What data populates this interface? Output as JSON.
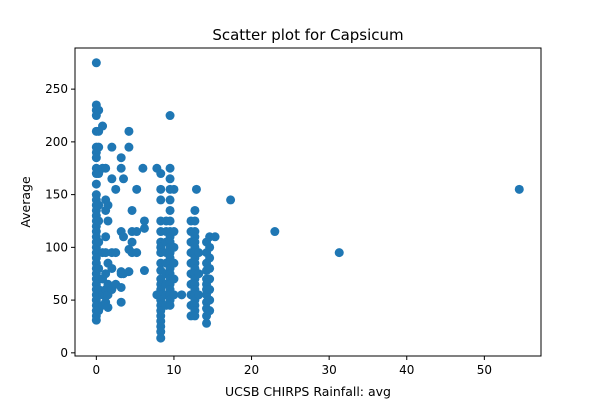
{
  "chart_data": {
    "type": "scatter",
    "title": "Scatter plot for Capsicum",
    "xlabel": "UCSB CHIRPS Rainfall: avg",
    "ylabel": "Average",
    "xlim": [
      -2.75,
      57.3
    ],
    "ylim": [
      -3,
      289
    ],
    "xticks": [
      0,
      10,
      20,
      30,
      40,
      50
    ],
    "yticks": [
      0,
      50,
      100,
      150,
      200,
      250
    ],
    "grid": false,
    "marker_color": "#1f77b4",
    "points": [
      [
        0,
        275
      ],
      [
        0,
        235
      ],
      [
        0,
        230
      ],
      [
        0,
        225
      ],
      [
        0,
        210
      ],
      [
        0,
        195
      ],
      [
        0,
        190
      ],
      [
        0,
        185
      ],
      [
        0,
        175
      ],
      [
        0,
        170
      ],
      [
        0,
        160
      ],
      [
        0,
        150
      ],
      [
        0,
        145
      ],
      [
        0,
        140
      ],
      [
        0,
        135
      ],
      [
        0,
        130
      ],
      [
        0,
        125
      ],
      [
        0,
        120
      ],
      [
        0,
        115
      ],
      [
        0,
        110
      ],
      [
        0,
        105
      ],
      [
        0,
        100
      ],
      [
        0,
        95
      ],
      [
        0,
        90
      ],
      [
        0,
        85
      ],
      [
        0,
        80
      ],
      [
        0,
        75
      ],
      [
        0,
        70
      ],
      [
        0,
        65
      ],
      [
        0,
        60
      ],
      [
        0,
        55
      ],
      [
        0,
        50
      ],
      [
        0,
        45
      ],
      [
        0,
        40
      ],
      [
        0,
        35
      ],
      [
        0,
        31
      ],
      [
        0.3,
        230
      ],
      [
        0.3,
        210
      ],
      [
        0.3,
        195
      ],
      [
        0.3,
        170
      ],
      [
        0.3,
        140
      ],
      [
        0.3,
        125
      ],
      [
        0.3,
        105
      ],
      [
        0.3,
        80
      ],
      [
        0.3,
        60
      ],
      [
        0.3,
        40
      ],
      [
        0.8,
        215
      ],
      [
        0.8,
        175
      ],
      [
        0.8,
        95
      ],
      [
        0.8,
        70
      ],
      [
        0.8,
        55
      ],
      [
        0.8,
        45
      ],
      [
        1.2,
        175
      ],
      [
        1.2,
        145
      ],
      [
        1.2,
        135
      ],
      [
        1.2,
        110
      ],
      [
        1.2,
        95
      ],
      [
        1.2,
        75
      ],
      [
        1.2,
        60
      ],
      [
        1.2,
        48
      ],
      [
        1.5,
        140
      ],
      [
        1.5,
        125
      ],
      [
        1.5,
        85
      ],
      [
        1.5,
        65
      ],
      [
        1.5,
        55
      ],
      [
        1.5,
        43
      ],
      [
        2.0,
        195
      ],
      [
        2.0,
        165
      ],
      [
        2.0,
        95
      ],
      [
        2.0,
        80
      ],
      [
        2.0,
        60
      ],
      [
        2.5,
        155
      ],
      [
        2.5,
        95
      ],
      [
        2.5,
        65
      ],
      [
        3.2,
        185
      ],
      [
        3.2,
        175
      ],
      [
        3.2,
        115
      ],
      [
        3.2,
        77
      ],
      [
        3.2,
        75
      ],
      [
        3.2,
        62
      ],
      [
        3.2,
        48
      ],
      [
        3.5,
        165
      ],
      [
        3.5,
        110
      ],
      [
        3.5,
        75
      ],
      [
        4.2,
        210
      ],
      [
        4.2,
        195
      ],
      [
        4.2,
        98
      ],
      [
        4.2,
        77
      ],
      [
        4.6,
        135
      ],
      [
        4.6,
        115
      ],
      [
        4.6,
        105
      ],
      [
        4.6,
        95
      ],
      [
        5.2,
        155
      ],
      [
        5.2,
        115
      ],
      [
        5.2,
        95
      ],
      [
        6.0,
        175
      ],
      [
        6.2,
        125
      ],
      [
        6.2,
        118
      ],
      [
        6.2,
        78
      ],
      [
        7.8,
        175
      ],
      [
        7.8,
        55
      ],
      [
        8.3,
        170
      ],
      [
        8.3,
        155
      ],
      [
        8.3,
        145
      ],
      [
        8.3,
        125
      ],
      [
        8.3,
        115
      ],
      [
        8.3,
        105
      ],
      [
        8.3,
        100
      ],
      [
        8.3,
        95
      ],
      [
        8.3,
        85
      ],
      [
        8.3,
        78
      ],
      [
        8.3,
        70
      ],
      [
        8.3,
        65
      ],
      [
        8.3,
        60
      ],
      [
        8.3,
        55
      ],
      [
        8.3,
        50
      ],
      [
        8.3,
        45
      ],
      [
        8.3,
        40
      ],
      [
        8.3,
        35
      ],
      [
        8.3,
        30
      ],
      [
        8.3,
        25
      ],
      [
        8.3,
        20
      ],
      [
        8.3,
        14
      ],
      [
        9.0,
        125
      ],
      [
        9.0,
        115
      ],
      [
        9.0,
        105
      ],
      [
        9.0,
        95
      ],
      [
        9.0,
        85
      ],
      [
        9.0,
        75
      ],
      [
        9.0,
        65
      ],
      [
        9.0,
        55
      ],
      [
        9.0,
        45
      ],
      [
        9.5,
        225
      ],
      [
        9.5,
        175
      ],
      [
        9.5,
        165
      ],
      [
        9.5,
        155
      ],
      [
        9.5,
        145
      ],
      [
        9.5,
        135
      ],
      [
        9.5,
        125
      ],
      [
        9.5,
        115
      ],
      [
        9.5,
        110
      ],
      [
        9.5,
        105
      ],
      [
        9.5,
        100
      ],
      [
        9.5,
        95
      ],
      [
        9.5,
        90
      ],
      [
        9.5,
        85
      ],
      [
        9.5,
        80
      ],
      [
        9.5,
        75
      ],
      [
        9.5,
        70
      ],
      [
        9.5,
        65
      ],
      [
        9.5,
        60
      ],
      [
        9.5,
        55
      ],
      [
        9.5,
        50
      ],
      [
        9.5,
        45
      ],
      [
        10.0,
        155
      ],
      [
        10.0,
        115
      ],
      [
        10.0,
        100
      ],
      [
        10.0,
        85
      ],
      [
        10.0,
        70
      ],
      [
        10.0,
        55
      ],
      [
        11.0,
        55
      ],
      [
        12.2,
        125
      ],
      [
        12.2,
        115
      ],
      [
        12.2,
        105
      ],
      [
        12.2,
        95
      ],
      [
        12.2,
        85
      ],
      [
        12.2,
        75
      ],
      [
        12.2,
        65
      ],
      [
        12.2,
        55
      ],
      [
        12.2,
        45
      ],
      [
        12.2,
        35
      ],
      [
        12.7,
        135
      ],
      [
        12.7,
        125
      ],
      [
        12.7,
        115
      ],
      [
        12.7,
        110
      ],
      [
        12.7,
        105
      ],
      [
        12.7,
        100
      ],
      [
        12.7,
        95
      ],
      [
        12.7,
        90
      ],
      [
        12.7,
        85
      ],
      [
        12.7,
        80
      ],
      [
        12.7,
        75
      ],
      [
        12.7,
        70
      ],
      [
        12.7,
        65
      ],
      [
        12.7,
        60
      ],
      [
        12.7,
        55
      ],
      [
        12.7,
        50
      ],
      [
        12.7,
        45
      ],
      [
        12.7,
        40
      ],
      [
        12.7,
        35
      ],
      [
        12.9,
        155
      ],
      [
        13.2,
        95
      ],
      [
        13.2,
        75
      ],
      [
        13.2,
        55
      ],
      [
        14.2,
        105
      ],
      [
        14.2,
        95
      ],
      [
        14.2,
        85
      ],
      [
        14.2,
        78
      ],
      [
        14.2,
        70
      ],
      [
        14.2,
        65
      ],
      [
        14.2,
        60
      ],
      [
        14.2,
        55
      ],
      [
        14.2,
        48
      ],
      [
        14.2,
        42
      ],
      [
        14.2,
        35
      ],
      [
        14.2,
        28
      ],
      [
        14.6,
        110
      ],
      [
        14.6,
        100
      ],
      [
        14.6,
        90
      ],
      [
        14.6,
        80
      ],
      [
        14.6,
        70
      ],
      [
        14.6,
        60
      ],
      [
        14.6,
        50
      ],
      [
        14.6,
        40
      ],
      [
        15.3,
        110
      ],
      [
        17.3,
        145
      ],
      [
        23.0,
        115
      ],
      [
        31.3,
        95
      ],
      [
        54.5,
        155
      ]
    ]
  }
}
